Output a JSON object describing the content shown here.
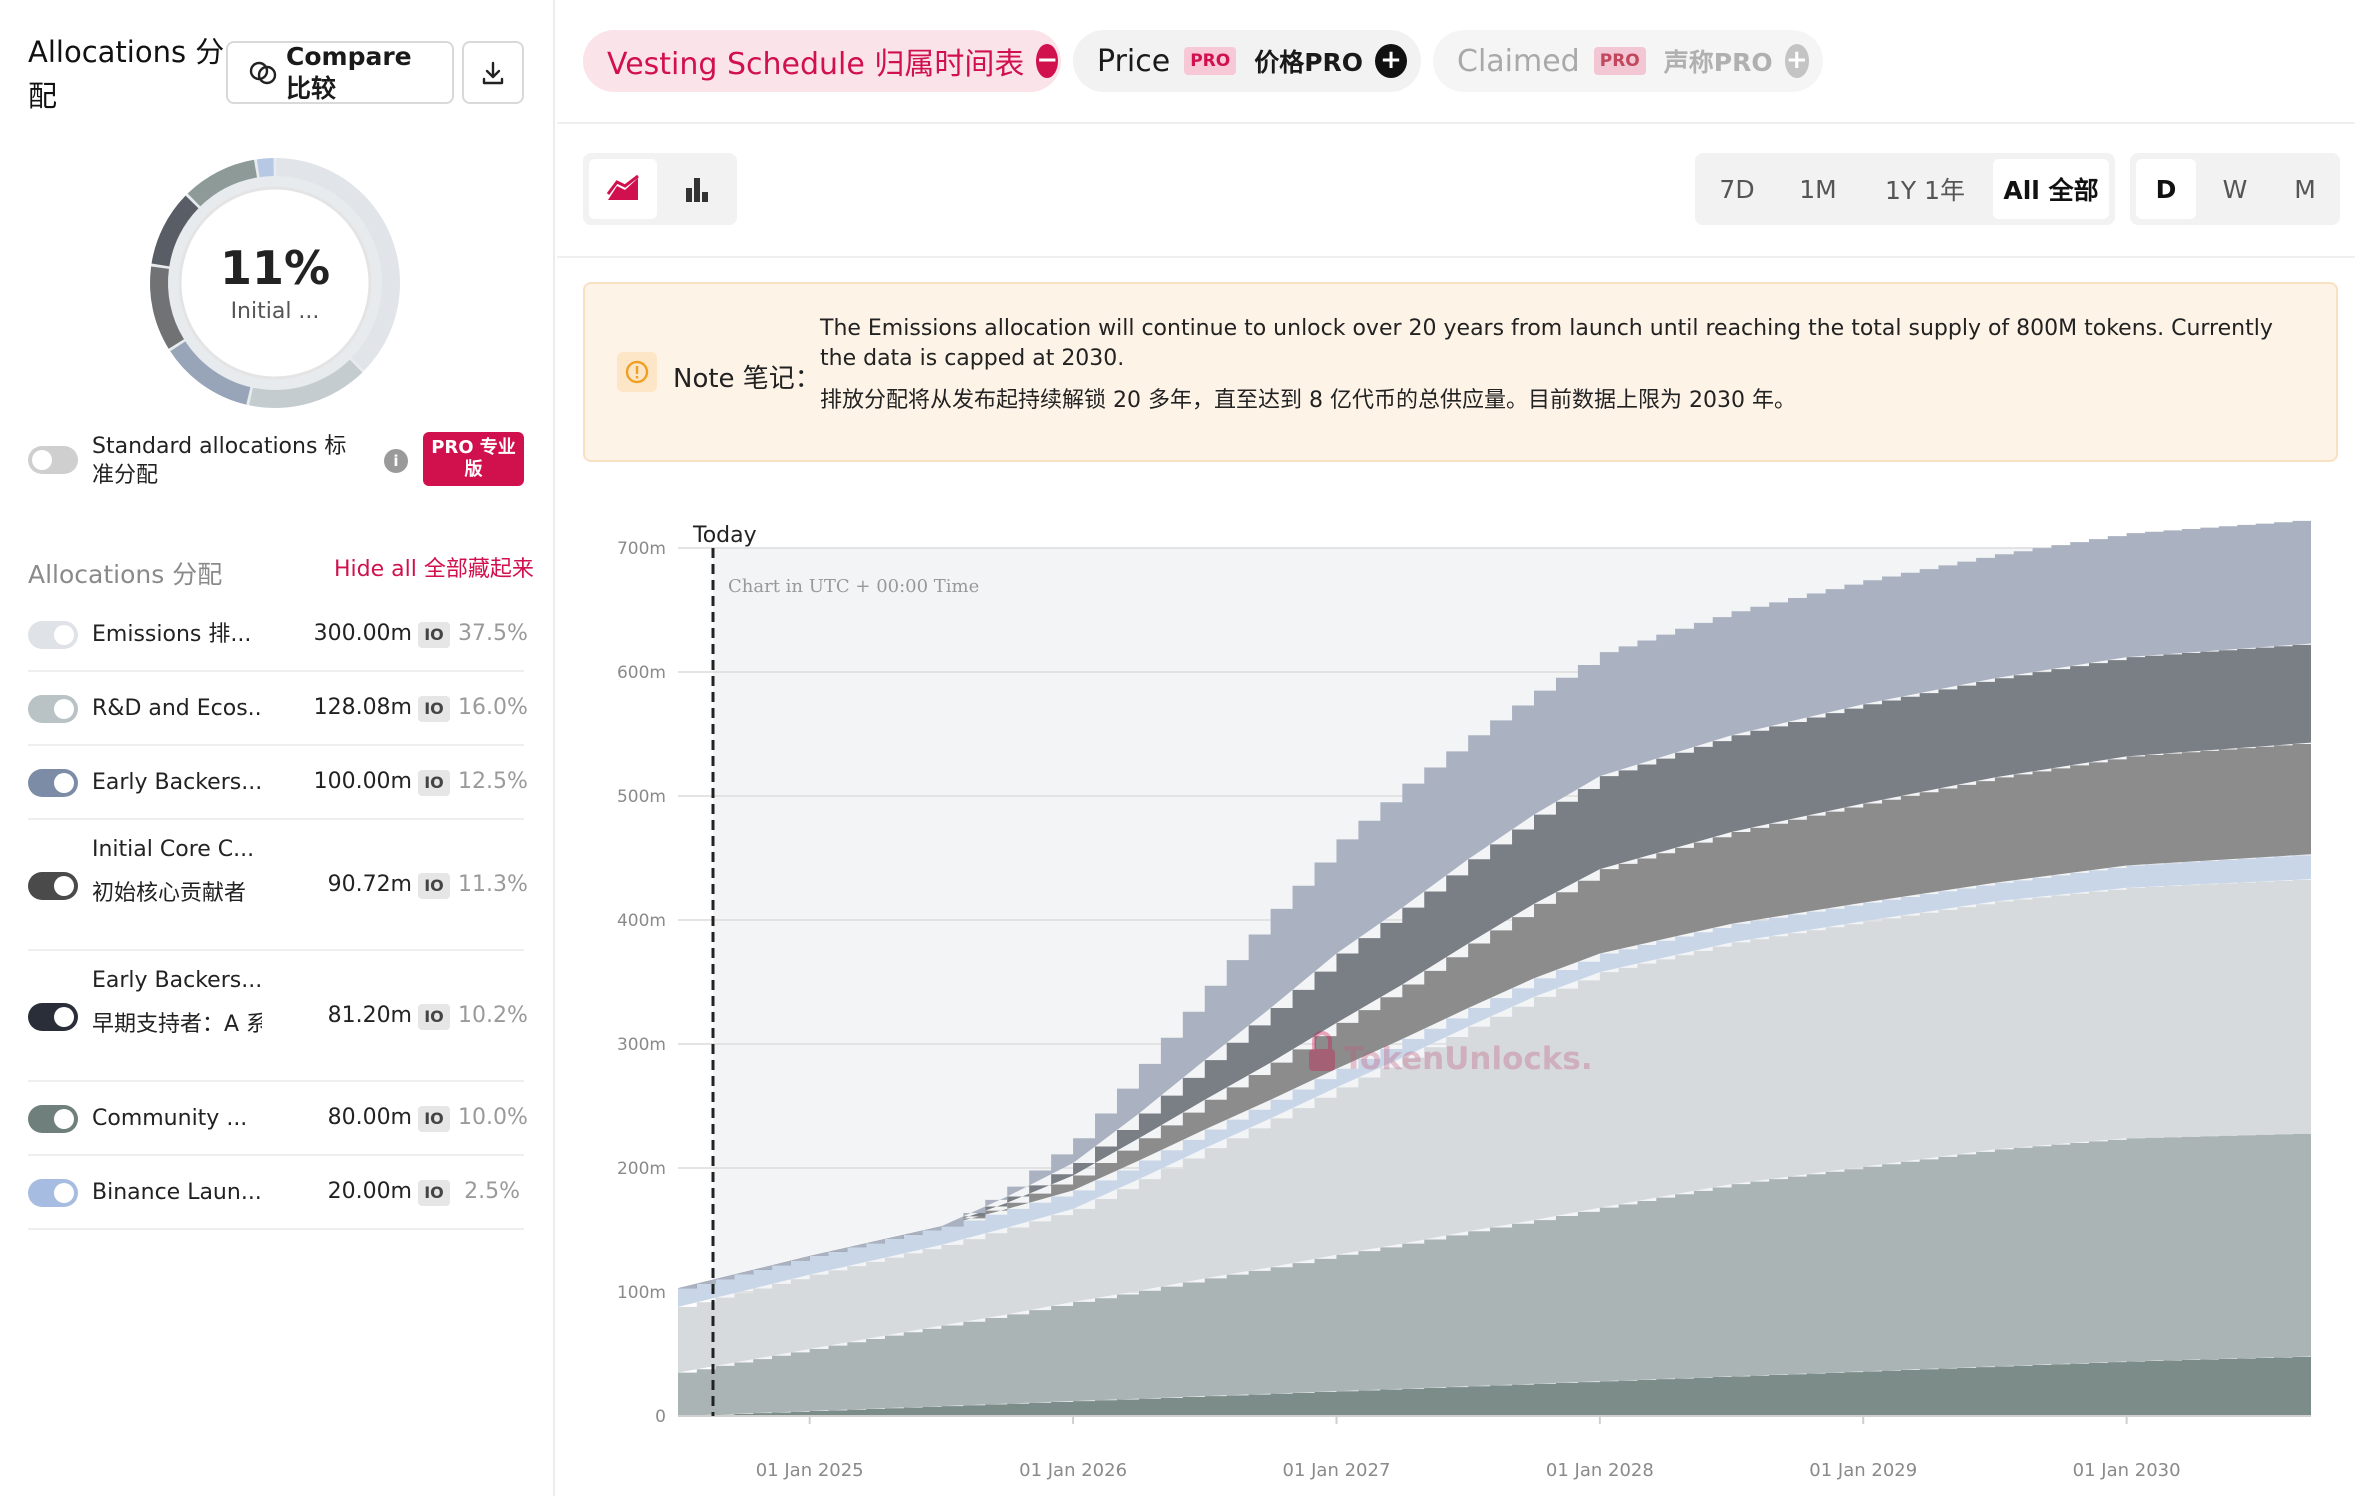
{
  "left": {
    "title": "Allocations 分配",
    "compare_label": "Compare 比较",
    "download_icon": "download-icon",
    "donut": {
      "percent": "11%",
      "sublabel": "Initial ...",
      "initial_fraction": 0.11
    },
    "standard_label": "Standard allocations 标准分配",
    "pro_badge": "PRO 专业版",
    "section_label": "Allocations 分配",
    "hide_all": "Hide all 全部藏起来",
    "items": [
      {
        "name": "Emissions 排...",
        "amount": "300.00m",
        "io": "IO",
        "pct": "37.5%",
        "color": "#dfe3e8"
      },
      {
        "name": "R&D and Ecos...",
        "amount": "128.08m",
        "io": "IO",
        "pct": "16.0%",
        "color": "#b9c2c4"
      },
      {
        "name": "Early Backers...",
        "amount": "100.00m",
        "io": "IO",
        "pct": "12.5%",
        "color": "#7d8ca6"
      },
      {
        "name": "Initial Core C...",
        "name2": "初始核心贡献者",
        "amount": "90.72m",
        "io": "IO",
        "pct": "11.3%",
        "color": "#4a4a4a"
      },
      {
        "name": "Early Backers...",
        "name2": "早期支持者：A 系",
        "amount": "81.20m",
        "io": "IO",
        "pct": "10.2%",
        "color": "#2a2e38"
      },
      {
        "name": "Community ...",
        "amount": "80.00m",
        "io": "IO",
        "pct": "10.0%",
        "color": "#6f7f7b"
      },
      {
        "name": "Binance Laun...",
        "amount": "20.00m",
        "io": "IO",
        "pct": "2.5%",
        "color": "#a6bce0"
      }
    ]
  },
  "tabs": [
    {
      "label": "Vesting Schedule 归属时间表",
      "icon": "minus-circle-icon"
    },
    {
      "label": "Price",
      "pro": "PRO",
      "zh": "价格PRO",
      "icon": "plus-circle-icon"
    },
    {
      "label": "Claimed",
      "pro": "PRO",
      "zh": "声称PRO",
      "icon": "plus-circle-icon"
    }
  ],
  "chart_types": [
    "area-chart-icon",
    "bar-chart-icon"
  ],
  "ranges": [
    {
      "label": "7D",
      "active": false
    },
    {
      "label": "1M",
      "active": false
    },
    {
      "label": "1Y 1年",
      "active": false
    },
    {
      "label": "All 全部",
      "active": true
    }
  ],
  "granularity": [
    {
      "label": "D",
      "active": true
    },
    {
      "label": "W",
      "active": false
    },
    {
      "label": "M",
      "active": false
    }
  ],
  "note": {
    "label": "Note 笔记：",
    "text_en": "The Emissions allocation will continue to unlock over 20 years from launch until reaching the total supply of 800M tokens. Currently the data is capped at 2030.",
    "text_zh": "排放分配将从发布起持续解锁 20 多年，直至达到 8 亿代币的总供应量。目前数据上限为 2030 年。"
  },
  "chart_data": {
    "type": "area",
    "stacked": true,
    "today_label": "Today",
    "tz_label": "Chart in UTC + 00:00 Time",
    "watermark": "TokenUnlocks.",
    "yticks": [
      "0",
      "100m",
      "200m",
      "300m",
      "400m",
      "500m",
      "600m",
      "700m"
    ],
    "ylim": [
      0,
      700
    ],
    "xticks": [
      "01 Jan 2025",
      "01 Jan 2026",
      "01 Jan 2027",
      "01 Jan 2028",
      "01 Jan 2029",
      "01 Jan 2030"
    ],
    "x": [
      2024.5,
      2025.0,
      2025.5,
      2025.75,
      2026.0,
      2026.25,
      2026.5,
      2026.75,
      2027.0,
      2027.25,
      2027.5,
      2027.75,
      2028.0,
      2028.5,
      2029.0,
      2029.5,
      2030.0,
      2030.7
    ],
    "series": [
      {
        "color": "#7b8c89",
        "values": [
          0,
          4,
          8,
          10,
          12,
          14,
          16,
          18,
          20,
          22,
          24,
          26,
          28,
          32,
          36,
          40,
          44,
          48
        ]
      },
      {
        "color": "#aab4b4",
        "values": [
          35,
          50,
          65,
          72,
          80,
          87,
          95,
          102,
          110,
          117,
          125,
          132,
          140,
          155,
          165,
          175,
          180,
          180
        ]
      },
      {
        "color": "#d6dadc",
        "values": [
          53,
          60,
          65,
          70,
          75,
          90,
          105,
          120,
          135,
          150,
          165,
          180,
          190,
          195,
          198,
          200,
          202,
          205
        ]
      },
      {
        "color": "#c9d6e8",
        "values": [
          15,
          15,
          15,
          15,
          15,
          15,
          15,
          15,
          15,
          15,
          15,
          15,
          15,
          15,
          15,
          15,
          18,
          20
        ]
      },
      {
        "color": "#8c8c8c",
        "values": [
          0,
          0,
          0,
          5,
          12,
          18,
          24,
          30,
          37,
          44,
          52,
          60,
          68,
          74,
          80,
          85,
          88,
          90
        ]
      },
      {
        "color": "#7a7e85",
        "values": [
          0,
          0,
          0,
          5,
          10,
          20,
          32,
          44,
          56,
          62,
          68,
          72,
          75,
          78,
          80,
          80,
          80,
          80
        ]
      },
      {
        "color": "#aab1c0",
        "values": [
          0,
          0,
          0,
          8,
          20,
          40,
          60,
          80,
          92,
          100,
          100,
          100,
          100,
          100,
          100,
          100,
          100,
          100
        ]
      }
    ]
  }
}
